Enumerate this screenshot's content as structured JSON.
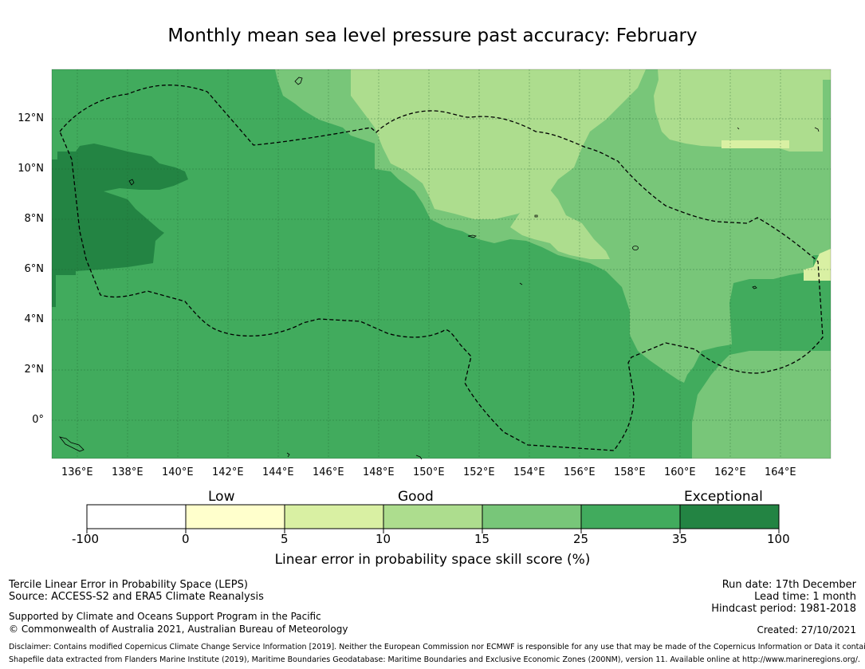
{
  "title": "Monthly mean sea level pressure past accuracy: February",
  "map": {
    "lon_ticks": [
      "136°E",
      "138°E",
      "140°E",
      "142°E",
      "144°E",
      "146°E",
      "148°E",
      "150°E",
      "152°E",
      "154°E",
      "156°E",
      "158°E",
      "160°E",
      "162°E",
      "164°E"
    ],
    "lat_ticks": [
      "12°N",
      "10°N",
      "8°N",
      "6°N",
      "4°N",
      "2°N",
      "0°"
    ],
    "colors": {
      "lt0": "#ffffff",
      "c0_5": "#ffffcc",
      "c5_10": "#d9f0a3",
      "c10_15": "#addd8e",
      "c15_25": "#78c679",
      "c25_35": "#41ab5d",
      "c35_100": "#238443"
    }
  },
  "colorbar": {
    "categories": [
      "Low",
      "Good",
      "Exceptional"
    ],
    "labels": [
      "-100",
      "0",
      "5",
      "10",
      "15",
      "25",
      "35",
      "100"
    ],
    "colors": [
      "#ffffff",
      "#ffffcc",
      "#d9f0a3",
      "#addd8e",
      "#78c679",
      "#41ab5d",
      "#238443"
    ],
    "xlabel": "Linear error in probability space skill score (%)"
  },
  "footer": {
    "method": "Tercile Linear Error in Probability Space (LEPS)",
    "source": "Source: ACCESS-S2 and ERA5 Climate Reanalysis",
    "support": "Supported by Climate and Oceans Support Program in the Pacific",
    "copyright": "© Commonwealth of Australia 2021, Australian Bureau of Meteorology",
    "run_date": "Run date: 17th December",
    "lead_time": "Lead time: 1 month",
    "hindcast": "Hindcast period: 1981-2018",
    "created": "Created: 27/10/2021",
    "disclaimer1": "Disclaimer: Contains modified Copernicus Climate Change Service Information [2019]. Neither the European Commission nor ECMWF is responsible for any use that may be made of the Copernicus Information or Data it contains.",
    "disclaimer2": "Shapefile data extracted from Flanders Marine Institute (2019), Maritime Boundaries Geodatabase: Maritime Boundaries and Exclusive Economic Zones (200NM), version 11. Available online at http://www.marineregions.org/."
  }
}
